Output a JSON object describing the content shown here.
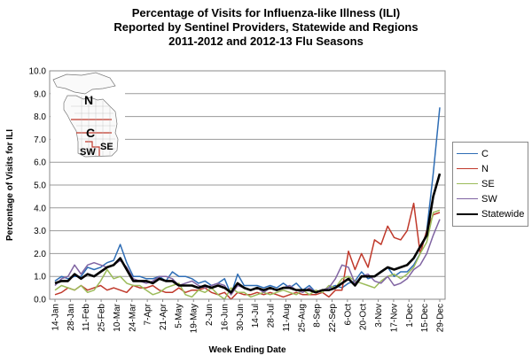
{
  "chart_data": {
    "type": "line",
    "title": [
      "Percentage  of Visits for Influenza-like Illness (ILI)",
      "Reported by Sentinel Providers, Statewide and Regions",
      "2011-2012  and 2012-13  Flu Seasons"
    ],
    "xlabel": "Week Ending Date",
    "ylabel": "Percentage of Visits for ILI",
    "ylim": [
      0,
      10
    ],
    "yticks": [
      "0.0",
      "1.0",
      "2.0",
      "3.0",
      "4.0",
      "5.0",
      "6.0",
      "7.0",
      "8.0",
      "9.0",
      "10.0"
    ],
    "x_tick_labels": [
      "14-Jan",
      "28-Jan",
      "11-Feb",
      "25-Feb",
      "10-Mar",
      "24-Mar",
      "7-Apr",
      "21-Apr",
      "5-May",
      "19-May",
      "2-Jun",
      "16-Jun",
      "30-Jun",
      "14-Jul",
      "28-Jul",
      "11-Aug",
      "25-Aug",
      "8-Sep",
      "22-Sep",
      "6-Oct",
      "20-Oct",
      "3-Nov",
      "17-Nov",
      "1-Dec",
      "15-Dec",
      "29-Dec"
    ],
    "grid": "horizontal",
    "legend_position": "right",
    "inset_map_labels": [
      "N",
      "C",
      "SW",
      "SE"
    ],
    "series": [
      {
        "name": "C",
        "color": "#2e6db5",
        "width": 1.5,
        "values": [
          0.8,
          1.0,
          0.9,
          1.0,
          1.0,
          1.4,
          1.3,
          1.4,
          1.6,
          1.7,
          2.4,
          1.6,
          1.0,
          1.0,
          0.9,
          0.9,
          1.0,
          0.8,
          1.2,
          1.0,
          1.0,
          0.9,
          0.7,
          0.8,
          0.6,
          0.7,
          0.9,
          0.2,
          1.1,
          0.6,
          0.6,
          0.6,
          0.5,
          0.6,
          0.5,
          0.7,
          0.5,
          0.7,
          0.4,
          0.6,
          0.3,
          0.4,
          0.5,
          0.6,
          0.5,
          0.7,
          0.8,
          1.2,
          0.9,
          1.0,
          1.2,
          1.4,
          1.0,
          1.2,
          1.2,
          1.5,
          2.0,
          3.0,
          5.5,
          8.4
        ]
      },
      {
        "name": "N",
        "color": "#c0392b",
        "width": 1.5,
        "values": [
          0.2,
          0.3,
          0.5,
          0.4,
          0.6,
          0.4,
          0.5,
          0.6,
          0.4,
          0.5,
          0.4,
          0.3,
          0.6,
          0.5,
          0.5,
          0.6,
          0.4,
          0.3,
          0.3,
          0.5,
          0.3,
          0.4,
          0.4,
          0.5,
          0.3,
          0.2,
          0.3,
          0.0,
          0.3,
          0.2,
          0.2,
          0.3,
          0.2,
          0.3,
          0.2,
          0.1,
          0.2,
          0.3,
          0.2,
          0.2,
          0.2,
          0.3,
          0.1,
          0.4,
          0.4,
          2.1,
          1.3,
          2.0,
          1.4,
          2.6,
          2.4,
          3.2,
          2.7,
          2.6,
          3.0,
          4.2,
          2.0,
          3.0,
          3.7,
          3.8
        ]
      },
      {
        "name": "SE",
        "color": "#9bbb59",
        "width": 1.5,
        "values": [
          0.4,
          0.6,
          0.5,
          0.4,
          0.6,
          0.3,
          0.4,
          0.8,
          1.3,
          0.9,
          1.0,
          0.7,
          0.6,
          0.6,
          0.4,
          0.2,
          0.3,
          0.5,
          0.6,
          0.7,
          0.2,
          0.1,
          0.4,
          0.3,
          0.5,
          0.2,
          0.0,
          0.5,
          0.3,
          0.3,
          0.1,
          0.2,
          0.3,
          0.2,
          0.3,
          0.4,
          0.3,
          0.2,
          0.4,
          0.2,
          0.4,
          0.3,
          0.6,
          0.5,
          0.9,
          1.0,
          0.8,
          0.7,
          0.6,
          0.5,
          0.8,
          1.0,
          1.1,
          0.9,
          1.1,
          1.4,
          2.0,
          2.5,
          3.8,
          3.9
        ]
      },
      {
        "name": "SW",
        "color": "#8064a2",
        "width": 1.5,
        "values": [
          0.6,
          0.9,
          1.0,
          1.5,
          1.1,
          1.5,
          1.6,
          1.5,
          1.4,
          1.5,
          1.7,
          1.4,
          0.9,
          0.8,
          0.7,
          0.8,
          1.0,
          1.0,
          0.9,
          0.6,
          0.7,
          0.8,
          0.6,
          0.5,
          0.6,
          0.7,
          0.6,
          0.2,
          0.6,
          0.5,
          0.4,
          0.5,
          0.3,
          0.5,
          0.4,
          0.5,
          0.6,
          0.4,
          0.3,
          0.5,
          0.3,
          0.4,
          0.5,
          0.9,
          1.5,
          1.4,
          0.7,
          1.0,
          1.1,
          0.8,
          0.7,
          1.0,
          0.6,
          0.7,
          0.9,
          1.3,
          1.5,
          2.0,
          2.8,
          3.5
        ]
      },
      {
        "name": "Statewide",
        "color": "#000000",
        "width": 2.6,
        "values": [
          0.7,
          0.8,
          0.8,
          1.1,
          0.9,
          1.1,
          1.0,
          1.2,
          1.4,
          1.5,
          1.8,
          1.3,
          0.8,
          0.8,
          0.8,
          0.7,
          0.9,
          0.8,
          0.8,
          0.6,
          0.6,
          0.6,
          0.5,
          0.6,
          0.5,
          0.6,
          0.5,
          0.3,
          0.7,
          0.5,
          0.4,
          0.5,
          0.4,
          0.5,
          0.4,
          0.5,
          0.5,
          0.4,
          0.4,
          0.4,
          0.3,
          0.4,
          0.4,
          0.5,
          0.7,
          0.9,
          0.6,
          1.0,
          1.0,
          1.0,
          1.2,
          1.4,
          1.3,
          1.4,
          1.5,
          1.8,
          2.3,
          2.8,
          4.5,
          5.5
        ]
      }
    ]
  }
}
